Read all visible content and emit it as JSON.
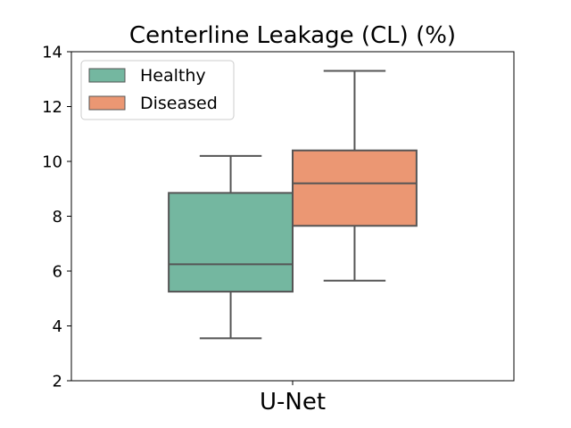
{
  "chart_data": {
    "type": "box",
    "title": "Centerline Leakage (CL) (%)",
    "xlabel": "",
    "ylabel": "",
    "categories": [
      "U-Net"
    ],
    "ylim": [
      2,
      14
    ],
    "yticks": [
      2,
      4,
      6,
      8,
      10,
      12,
      14
    ],
    "grid": false,
    "legend_position": "top-left",
    "series": [
      {
        "name": "Healthy",
        "color": "#74b7a0",
        "boxes": [
          {
            "category": "U-Net",
            "whisker_low": 3.55,
            "q1": 5.25,
            "median": 6.25,
            "q3": 8.85,
            "whisker_high": 10.2
          }
        ]
      },
      {
        "name": "Diseased",
        "color": "#eb9773",
        "boxes": [
          {
            "category": "U-Net",
            "whisker_low": 5.65,
            "q1": 7.65,
            "median": 9.2,
            "q3": 10.4,
            "whisker_high": 13.3
          }
        ]
      }
    ]
  }
}
